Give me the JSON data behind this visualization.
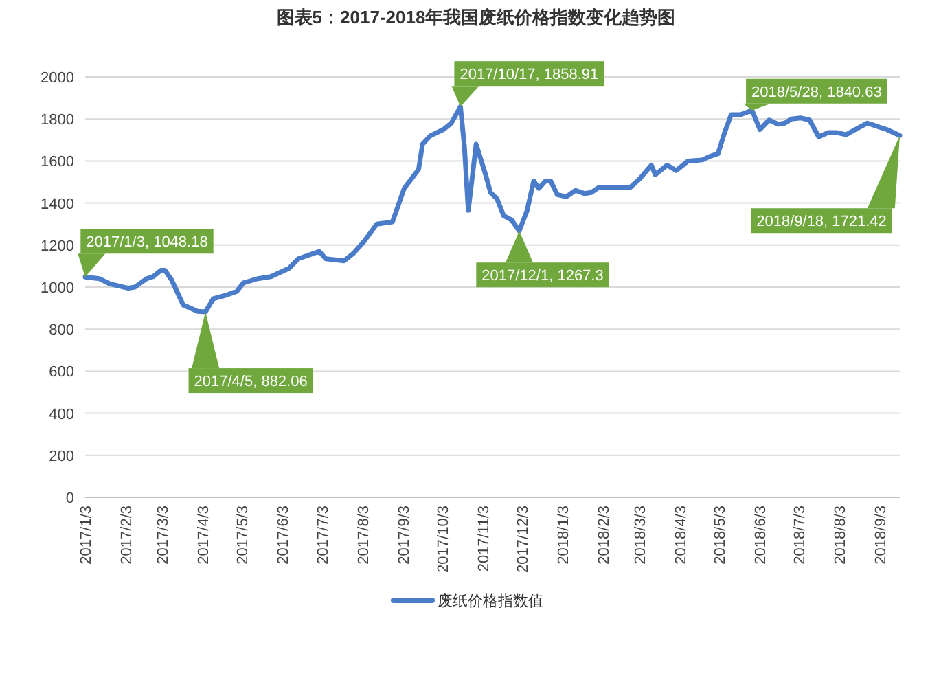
{
  "chart_data": {
    "type": "line",
    "title": "图表5：2017-2018年我国废纸价格指数变化趋势图",
    "x": [
      "2017-01-03",
      "2017-01-14",
      "2017-01-22",
      "2017-02-05",
      "2017-02-10",
      "2017-02-19",
      "2017-02-24",
      "2017-03-02",
      "2017-03-05",
      "2017-03-10",
      "2017-03-19",
      "2017-03-30",
      "2017-04-05",
      "2017-04-11",
      "2017-04-20",
      "2017-04-29",
      "2017-05-04",
      "2017-05-15",
      "2017-05-25",
      "2017-06-08",
      "2017-06-15",
      "2017-07-01",
      "2017-07-06",
      "2017-07-20",
      "2017-07-27",
      "2017-08-04",
      "2017-08-14",
      "2017-08-26",
      "2017-09-04",
      "2017-09-15",
      "2017-09-18",
      "2017-09-24",
      "2017-10-04",
      "2017-10-10",
      "2017-10-17",
      "2017-10-20",
      "2017-10-23",
      "2017-10-29",
      "2017-11-05",
      "2017-11-09",
      "2017-11-14",
      "2017-11-19",
      "2017-11-25",
      "2017-12-01",
      "2017-12-07",
      "2017-12-12",
      "2017-12-16",
      "2017-12-21",
      "2017-12-25",
      "2017-12-30",
      "2018-01-06",
      "2018-01-13",
      "2018-01-20",
      "2018-01-25",
      "2018-01-31",
      "2018-02-24",
      "2018-03-03",
      "2018-03-12",
      "2018-03-15",
      "2018-03-24",
      "2018-03-31",
      "2018-04-09",
      "2018-04-20",
      "2018-04-25",
      "2018-05-02",
      "2018-05-07",
      "2018-05-12",
      "2018-05-19",
      "2018-05-28",
      "2018-06-03",
      "2018-06-10",
      "2018-06-17",
      "2018-06-22",
      "2018-06-27",
      "2018-07-04",
      "2018-07-11",
      "2018-07-18",
      "2018-07-25",
      "2018-08-01",
      "2018-08-08",
      "2018-08-15",
      "2018-08-24",
      "2018-08-27",
      "2018-09-03",
      "2018-09-08",
      "2018-09-18"
    ],
    "series": [
      {
        "name": "废纸价格指数值",
        "color": "#4a7cc9",
        "values": [
          1048.18,
          1040,
          1015,
          995,
          1000,
          1040,
          1050,
          1080,
          1080,
          1035,
          915,
          885,
          882.06,
          945,
          960,
          980,
          1020,
          1040,
          1050,
          1090,
          1135,
          1170,
          1135,
          1125,
          1160,
          1215,
          1300,
          1310,
          1470,
          1560,
          1680,
          1720,
          1750,
          1780,
          1858.91,
          1670,
          1365,
          1680,
          1540,
          1450,
          1420,
          1340,
          1320,
          1267.3,
          1365,
          1505,
          1470,
          1505,
          1505,
          1440,
          1430,
          1460,
          1445,
          1450,
          1475,
          1475,
          1515,
          1580,
          1535,
          1580,
          1555,
          1600,
          1605,
          1620,
          1635,
          1735,
          1820,
          1820,
          1840.63,
          1750,
          1795,
          1775,
          1780,
          1800,
          1805,
          1795,
          1715,
          1735,
          1735,
          1725,
          1750,
          1780,
          1775,
          1760,
          1750,
          1721.42
        ]
      }
    ],
    "xlim": [
      "2017-01-03",
      "2018-09-18"
    ],
    "xticks": [
      {
        "value": "2017-01-03",
        "label": "2017/1/3"
      },
      {
        "value": "2017-02-03",
        "label": "2017/2/3"
      },
      {
        "value": "2017-03-03",
        "label": "2017/3/3"
      },
      {
        "value": "2017-04-03",
        "label": "2017/4/3"
      },
      {
        "value": "2017-05-03",
        "label": "2017/5/3"
      },
      {
        "value": "2017-06-03",
        "label": "2017/6/3"
      },
      {
        "value": "2017-07-03",
        "label": "2017/7/3"
      },
      {
        "value": "2017-08-03",
        "label": "2017/8/3"
      },
      {
        "value": "2017-09-03",
        "label": "2017/9/3"
      },
      {
        "value": "2017-10-03",
        "label": "2017/10/3"
      },
      {
        "value": "2017-11-03",
        "label": "2017/11/3"
      },
      {
        "value": "2017-12-03",
        "label": "2017/12/3"
      },
      {
        "value": "2018-01-03",
        "label": "2018/1/3"
      },
      {
        "value": "2018-02-03",
        "label": "2018/2/3"
      },
      {
        "value": "2018-03-03",
        "label": "2018/3/3"
      },
      {
        "value": "2018-04-03",
        "label": "2018/4/3"
      },
      {
        "value": "2018-05-03",
        "label": "2018/5/3"
      },
      {
        "value": "2018-06-03",
        "label": "2018/6/3"
      },
      {
        "value": "2018-07-03",
        "label": "2018/7/3"
      },
      {
        "value": "2018-08-03",
        "label": "2018/8/3"
      },
      {
        "value": "2018-09-03",
        "label": "2018/9/3"
      }
    ],
    "ylim": [
      0,
      2000
    ],
    "yticks": [
      0,
      200,
      400,
      600,
      800,
      1000,
      1200,
      1400,
      1600,
      1800,
      2000
    ],
    "grid": "y",
    "legend": "bottom",
    "marker": "none",
    "line_style": "solid",
    "annotations": [
      {
        "text": "2017/1/3, 1048.18",
        "x": "2017-01-03",
        "y": 1048.18
      },
      {
        "text": "2017/4/5, 882.06",
        "x": "2017-04-05",
        "y": 882.06
      },
      {
        "text": "2017/10/17, 1858.91",
        "x": "2017-10-17",
        "y": 1858.91
      },
      {
        "text": "2017/12/1, 1267.3",
        "x": "2017-12-01",
        "y": 1267.3
      },
      {
        "text": "2018/5/28, 1840.63",
        "x": "2018-05-28",
        "y": 1840.63
      },
      {
        "text": "2018/9/18, 1721.42",
        "x": "2018-09-18",
        "y": 1721.42
      }
    ]
  }
}
